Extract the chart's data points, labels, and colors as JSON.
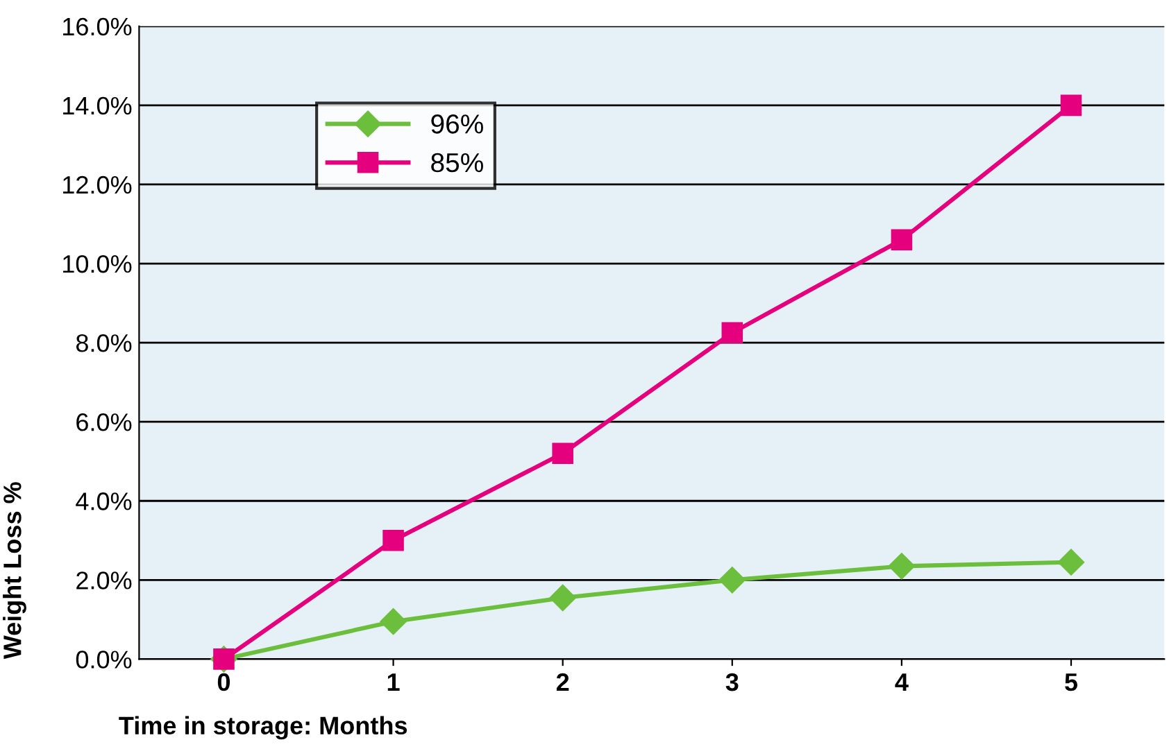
{
  "chart_data": {
    "type": "line",
    "xlabel": "Time in storage: Months",
    "ylabel": "Weight Loss %",
    "x": [
      0,
      1,
      2,
      3,
      4,
      5
    ],
    "series": [
      {
        "name": "96%",
        "color": "#6cbf3c",
        "marker": "diamond",
        "values": [
          0,
          0.95,
          1.55,
          2.0,
          2.35,
          2.45
        ]
      },
      {
        "name": "85%",
        "color": "#e5007e",
        "marker": "square",
        "values": [
          0,
          3.0,
          5.2,
          8.25,
          10.6,
          14.0
        ]
      }
    ],
    "xlim": [
      -0.5,
      5.55
    ],
    "xticks": [
      0,
      1,
      2,
      3,
      4,
      5
    ],
    "ylim": [
      0,
      16
    ],
    "yticks": [
      {
        "value": 0,
        "label": "0.0%"
      },
      {
        "value": 2,
        "label": "2.0%"
      },
      {
        "value": 4,
        "label": "4.0%"
      },
      {
        "value": 6,
        "label": "6.0%"
      },
      {
        "value": 8,
        "label": "8.0%"
      },
      {
        "value": 10,
        "label": "10.0%"
      },
      {
        "value": 12,
        "label": "12.0%"
      },
      {
        "value": 14,
        "label": "14.0%"
      },
      {
        "value": 16,
        "label": "16.0%"
      }
    ],
    "grid": "y",
    "legend": "top left",
    "line_style": "solid"
  }
}
